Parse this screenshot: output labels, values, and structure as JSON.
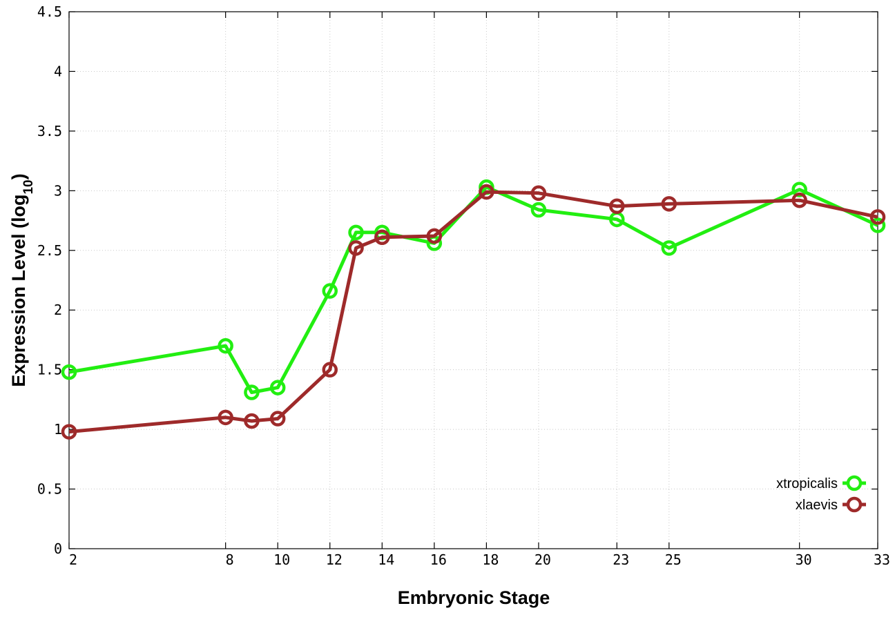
{
  "chart_data": {
    "type": "line",
    "title": "",
    "xlabel": "Embryonic Stage",
    "ylabel_main": "Expression Level (log",
    "ylabel_sub": "10",
    "ylabel_close": ")",
    "x_ticks": [
      2,
      8,
      10,
      12,
      14,
      16,
      18,
      20,
      23,
      25,
      30,
      33
    ],
    "y_ticks": [
      "0",
      "0.5",
      "1",
      "1.5",
      "2",
      "2.5",
      "3",
      "3.5",
      "4",
      "4.5"
    ],
    "xlim": [
      2,
      33
    ],
    "ylim": [
      0,
      4.5
    ],
    "grid": true,
    "legend_position": "bottom-right",
    "x": [
      2,
      8,
      9,
      10,
      12,
      13,
      14,
      16,
      18,
      20,
      23,
      25,
      30,
      33
    ],
    "series": [
      {
        "name": "xtropicalis",
        "color": "#22ee11",
        "values": [
          1.48,
          1.7,
          1.31,
          1.35,
          2.16,
          2.65,
          2.65,
          2.56,
          3.03,
          2.84,
          2.76,
          2.52,
          3.01,
          2.71
        ]
      },
      {
        "name": "xlaevis",
        "color": "#9e2a2a",
        "values": [
          0.98,
          1.1,
          1.07,
          1.09,
          1.5,
          2.52,
          2.61,
          2.62,
          2.99,
          2.98,
          2.87,
          2.89,
          2.92,
          2.78
        ]
      }
    ]
  }
}
